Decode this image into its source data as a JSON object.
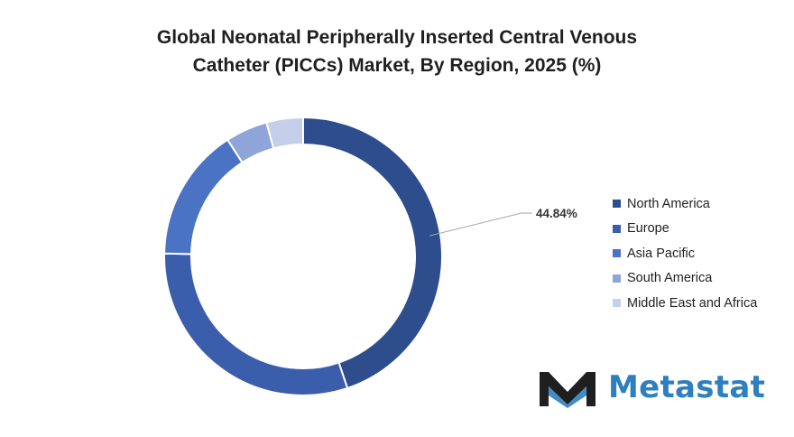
{
  "chart_data": {
    "type": "pie",
    "style": "donut",
    "title_lines": [
      "Global Neonatal Peripherally Inserted Central Venous",
      "Catheter (PICCs) Market, By Region, 2025 (%)"
    ],
    "series": [
      {
        "name": "North America",
        "value": 44.84,
        "color": "#2e4d8d"
      },
      {
        "name": "Europe",
        "value": 30.5,
        "color": "#3b5eac"
      },
      {
        "name": "Asia Pacific",
        "value": 15.5,
        "color": "#4a73c4"
      },
      {
        "name": "South America",
        "value": 4.9,
        "color": "#8fa4d8"
      },
      {
        "name": "Middle East and Africa",
        "value": 4.26,
        "color": "#c5cfea"
      }
    ],
    "data_labels": [
      {
        "series": "North America",
        "text": "44.84%"
      }
    ],
    "legend_position": "right"
  },
  "logo": {
    "wordmark": "Metastat",
    "icon": "metastat-m-logo-icon",
    "color": "#2e7fbf"
  }
}
